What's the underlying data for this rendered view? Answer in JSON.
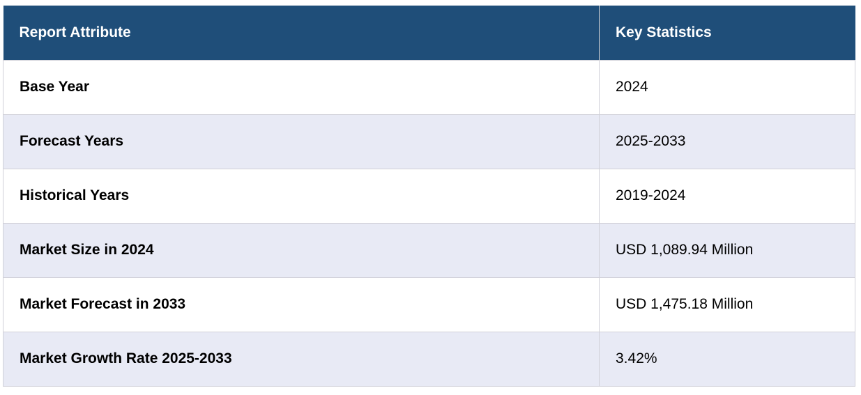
{
  "table": {
    "headers": [
      "Report Attribute",
      "Key Statistics"
    ],
    "rows": [
      {
        "attribute": "Base Year",
        "value": "2024"
      },
      {
        "attribute": "Forecast Years",
        "value": "2025-2033"
      },
      {
        "attribute": "Historical Years",
        "value": "2019-2024"
      },
      {
        "attribute": "Market Size in 2024",
        "value": "USD 1,089.94 Million"
      },
      {
        "attribute": "Market Forecast in 2033",
        "value": "USD 1,475.18 Million"
      },
      {
        "attribute": "Market Growth Rate 2025-2033",
        "value": "3.42%"
      }
    ]
  },
  "colors": {
    "header_bg": "#1f4e79",
    "header_text": "#ffffff",
    "row_alt_bg": "#e8eaf5",
    "row_bg": "#ffffff"
  }
}
